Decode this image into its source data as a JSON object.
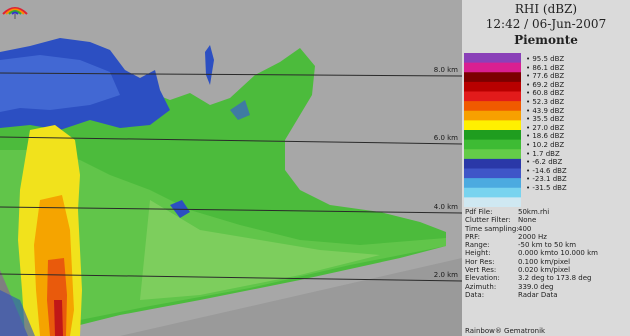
{
  "header": {
    "mode": "RHI (dBZ)",
    "datetime": "12:42 / 06-Jun-2007",
    "site": "Piemonte"
  },
  "altitude_labels": [
    "8.0 km",
    "6.0 km",
    "4.0 km",
    "2.0 km"
  ],
  "scale": {
    "labels": [
      "95.5 dBZ",
      "86.1 dBZ",
      "77.6 dBZ",
      "69.2 dBZ",
      "60.8 dBZ",
      "52.3 dBZ",
      "43.9 dBZ",
      "35.5 dBZ",
      "27.0 dBZ",
      "18.6 dBZ",
      "10.2 dBZ",
      "1.7 dBZ",
      "-6.2 dBZ",
      "-14.6 dBZ",
      "-23.1 dBZ",
      "-31.5 dBZ"
    ],
    "colors": [
      "#8a40b8",
      "#d91f91",
      "#7c0000",
      "#b80000",
      "#e21b1b",
      "#f05a00",
      "#f7a000",
      "#fff000",
      "#1f9d1f",
      "#3ebb34",
      "#64cc48",
      "#2a38a8",
      "#3f56c8",
      "#4caae0",
      "#78d3ef",
      "#cfe8f2"
    ]
  },
  "info": [
    {
      "key": "Pdf File:",
      "value": "50km.rhi"
    },
    {
      "key": "Clutter Filter:",
      "value": "None"
    },
    {
      "key": "Time sampling:",
      "value": "400"
    },
    {
      "key": "PRF:",
      "value": "2000 Hz"
    },
    {
      "key": "Range:",
      "value": "-50 km to 50 km"
    },
    {
      "key": "Height:",
      "value": "0.000 kmto 10.000 km"
    },
    {
      "key": "Hor Res:",
      "value": "0.100 km/pixel"
    },
    {
      "key": "Vert Res:",
      "value": "0.020 km/pixel"
    },
    {
      "key": "Elevation:",
      "value": "3.2 deg to 173.8 deg"
    },
    {
      "key": "Azimuth:",
      "value": "339.0 deg"
    },
    {
      "key": "Data:",
      "value": "Radar Data"
    }
  ],
  "brand": "Rainbow® Gematronik"
}
